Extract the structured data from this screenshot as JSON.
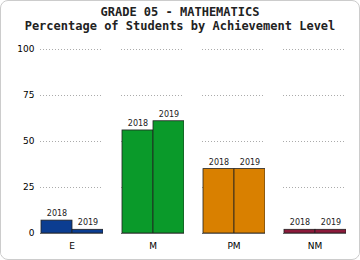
{
  "chart_data": {
    "type": "bar",
    "title": "GRADE 05 - MATHEMATICS",
    "subtitle": "Percentage of Students by Achievement Level",
    "categories": [
      "E",
      "M",
      "PM",
      "NM"
    ],
    "series": [
      {
        "name": "2018",
        "colors": [
          "#0b3d91",
          "#0a9a2a",
          "#d98000",
          "#8b1a3a"
        ],
        "values": [
          7,
          56,
          35,
          2
        ]
      },
      {
        "name": "2019",
        "colors": [
          "#0b3d91",
          "#0a9a2a",
          "#d98000",
          "#8b1a3a"
        ],
        "values": [
          2,
          61,
          35,
          2
        ]
      }
    ],
    "ylim": [
      0,
      100
    ],
    "yticks": [
      0,
      25,
      50,
      75,
      100
    ],
    "grid": true
  }
}
